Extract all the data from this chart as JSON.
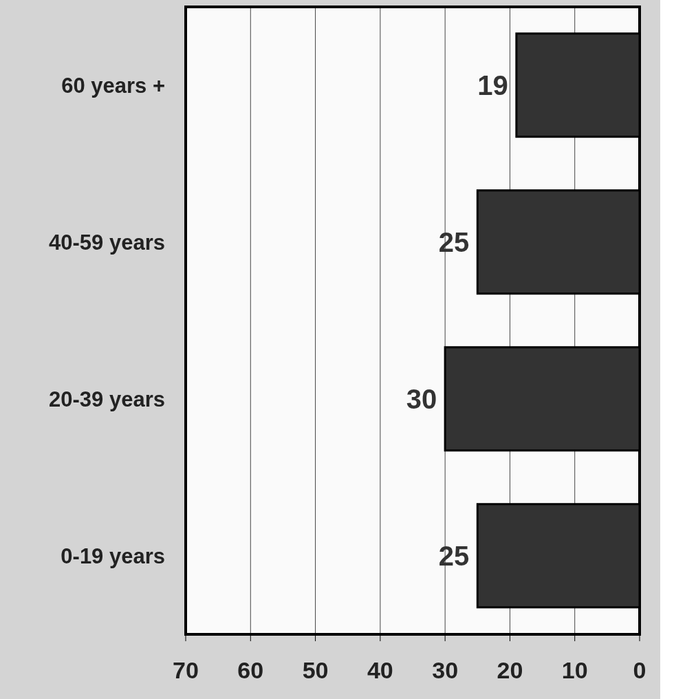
{
  "chart_data": {
    "type": "bar",
    "orientation": "horizontal",
    "categories": [
      "60 years +",
      "40-59 years",
      "20-39 years",
      "0-19 years"
    ],
    "values": [
      19,
      25,
      30,
      25
    ],
    "color": "#333333",
    "xlim": [
      70,
      0
    ],
    "xticks": [
      70,
      60,
      50,
      40,
      30,
      20,
      10,
      0
    ],
    "grid": "x",
    "data_labels": true
  }
}
